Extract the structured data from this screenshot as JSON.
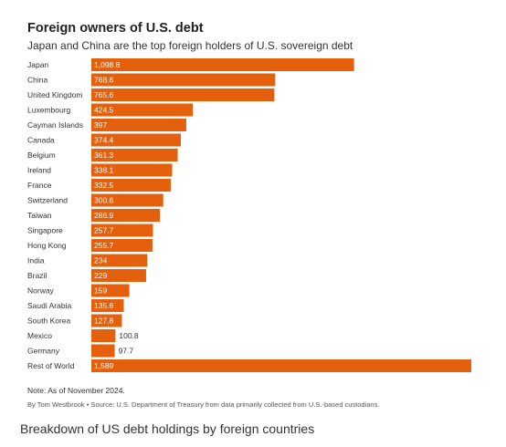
{
  "chart_data": {
    "type": "bar",
    "orientation": "horizontal",
    "title": "Foreign owners of U.S. debt",
    "subtitle": "Japan and China are the top foreign holders of U.S. sovereign debt",
    "categories": [
      "Japan",
      "China",
      "United Kingdom",
      "Luxembourg",
      "Cayman Islands",
      "Canada",
      "Belgium",
      "Ireland",
      "France",
      "Switzerland",
      "Taiwan",
      "Singapore",
      "Hong Kong",
      "India",
      "Brazil",
      "Norway",
      "Saudi Arabia",
      "South Korea",
      "Mexico",
      "Germany",
      "Rest of World"
    ],
    "values": [
      1098.8,
      768.6,
      765.6,
      424.5,
      397,
      374.4,
      361.3,
      338.1,
      332.5,
      300.6,
      286.9,
      257.7,
      255.7,
      234,
      229,
      159,
      135.6,
      127.8,
      100.8,
      97.7,
      1589
    ],
    "value_labels": [
      "1,098.8",
      "768.6",
      "765.6",
      "424.5",
      "397",
      "374.4",
      "361.3",
      "338.1",
      "332.5",
      "300.6",
      "286.9",
      "257.7",
      "255.7",
      "234",
      "229",
      "159",
      "135.6",
      "127.8",
      "100.8",
      "97.7",
      "1,589"
    ],
    "xlabel": "",
    "ylabel": "",
    "xlim": [
      0,
      1589
    ],
    "grid": false,
    "bar_color": "#e5600c",
    "label_inside_color": "#ffffff",
    "label_outside_color": "#333333"
  },
  "note": "Note: As of November 2024.",
  "credit": "By Tom Westbrook • Source: U.S. Department of Treasury from data primarily collected from U.S.-based custodians.",
  "caption": "Breakdown of US debt holdings by foreign countries"
}
